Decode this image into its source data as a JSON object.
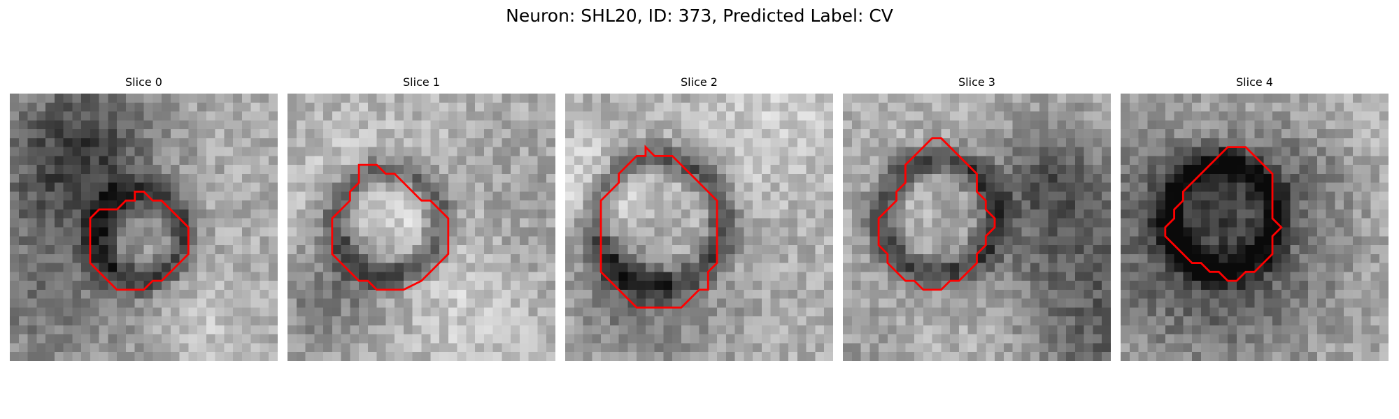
{
  "title": "Neuron: SHL20, ID: 373, Predicted Label: CV",
  "outline_color": "#ff0000",
  "panels": [
    {
      "label": "Slice 0",
      "outline": [
        [
          14,
          11
        ],
        [
          15,
          11
        ],
        [
          16,
          12
        ],
        [
          17,
          12
        ],
        [
          18,
          13
        ],
        [
          19,
          14
        ],
        [
          20,
          15
        ],
        [
          20,
          18
        ],
        [
          19,
          19
        ],
        [
          18,
          20
        ],
        [
          17,
          21
        ],
        [
          16,
          21
        ],
        [
          15,
          22
        ],
        [
          12,
          22
        ],
        [
          11,
          21
        ],
        [
          10,
          20
        ],
        [
          9,
          19
        ],
        [
          9,
          14
        ],
        [
          10,
          13
        ],
        [
          11,
          13
        ],
        [
          12,
          13
        ],
        [
          13,
          12
        ],
        [
          14,
          12
        ]
      ]
    },
    {
      "label": "Slice 1",
      "outline": [
        [
          8,
          8
        ],
        [
          9,
          8
        ],
        [
          10,
          8
        ],
        [
          11,
          9
        ],
        [
          12,
          9
        ],
        [
          13,
          10
        ],
        [
          14,
          11
        ],
        [
          15,
          12
        ],
        [
          16,
          12
        ],
        [
          17,
          13
        ],
        [
          18,
          14
        ],
        [
          18,
          15
        ],
        [
          18,
          18
        ],
        [
          17,
          19
        ],
        [
          16,
          20
        ],
        [
          15,
          21
        ],
        [
          13,
          22
        ],
        [
          10,
          22
        ],
        [
          9,
          21
        ],
        [
          8,
          21
        ],
        [
          7,
          20
        ],
        [
          6,
          19
        ],
        [
          5,
          18
        ],
        [
          5,
          14
        ],
        [
          6,
          13
        ],
        [
          7,
          12
        ],
        [
          7,
          11
        ],
        [
          8,
          10
        ],
        [
          8,
          9
        ]
      ]
    },
    {
      "label": "Slice 2",
      "outline": [
        [
          9,
          6
        ],
        [
          10,
          7
        ],
        [
          11,
          7
        ],
        [
          12,
          7
        ],
        [
          13,
          8
        ],
        [
          14,
          9
        ],
        [
          15,
          10
        ],
        [
          16,
          11
        ],
        [
          17,
          12
        ],
        [
          17,
          17
        ],
        [
          17,
          19
        ],
        [
          16,
          20
        ],
        [
          16,
          22
        ],
        [
          15,
          22
        ],
        [
          14,
          23
        ],
        [
          13,
          24
        ],
        [
          8,
          24
        ],
        [
          7,
          23
        ],
        [
          6,
          22
        ],
        [
          5,
          21
        ],
        [
          4,
          20
        ],
        [
          4,
          18
        ],
        [
          4,
          12
        ],
        [
          5,
          11
        ],
        [
          6,
          10
        ],
        [
          6,
          9
        ],
        [
          7,
          8
        ],
        [
          8,
          7
        ],
        [
          9,
          7
        ]
      ]
    },
    {
      "label": "Slice 3",
      "outline": [
        [
          10,
          5
        ],
        [
          11,
          5
        ],
        [
          12,
          6
        ],
        [
          13,
          7
        ],
        [
          14,
          8
        ],
        [
          15,
          9
        ],
        [
          15,
          11
        ],
        [
          16,
          12
        ],
        [
          16,
          13
        ],
        [
          17,
          14
        ],
        [
          17,
          15
        ],
        [
          16,
          16
        ],
        [
          16,
          17
        ],
        [
          15,
          18
        ],
        [
          15,
          19
        ],
        [
          14,
          20
        ],
        [
          13,
          21
        ],
        [
          12,
          21
        ],
        [
          11,
          22
        ],
        [
          9,
          22
        ],
        [
          8,
          21
        ],
        [
          7,
          21
        ],
        [
          6,
          20
        ],
        [
          5,
          19
        ],
        [
          5,
          18
        ],
        [
          4,
          17
        ],
        [
          4,
          14
        ],
        [
          5,
          13
        ],
        [
          6,
          12
        ],
        [
          6,
          11
        ],
        [
          7,
          10
        ],
        [
          7,
          8
        ],
        [
          8,
          7
        ],
        [
          9,
          6
        ],
        [
          10,
          5
        ]
      ]
    },
    {
      "label": "Slice 4",
      "outline": [
        [
          13,
          6
        ],
        [
          14,
          6
        ],
        [
          15,
          7
        ],
        [
          16,
          8
        ],
        [
          17,
          9
        ],
        [
          17,
          14
        ],
        [
          18,
          15
        ],
        [
          17,
          16
        ],
        [
          17,
          18
        ],
        [
          16,
          19
        ],
        [
          15,
          20
        ],
        [
          14,
          20
        ],
        [
          13,
          21
        ],
        [
          12,
          21
        ],
        [
          11,
          20
        ],
        [
          10,
          20
        ],
        [
          9,
          19
        ],
        [
          8,
          19
        ],
        [
          7,
          18
        ],
        [
          6,
          17
        ],
        [
          5,
          16
        ],
        [
          5,
          15
        ],
        [
          6,
          14
        ],
        [
          6,
          13
        ],
        [
          7,
          12
        ],
        [
          7,
          11
        ],
        [
          8,
          10
        ],
        [
          9,
          9
        ],
        [
          10,
          8
        ],
        [
          11,
          7
        ],
        [
          12,
          6
        ],
        [
          13,
          6
        ]
      ]
    }
  ]
}
